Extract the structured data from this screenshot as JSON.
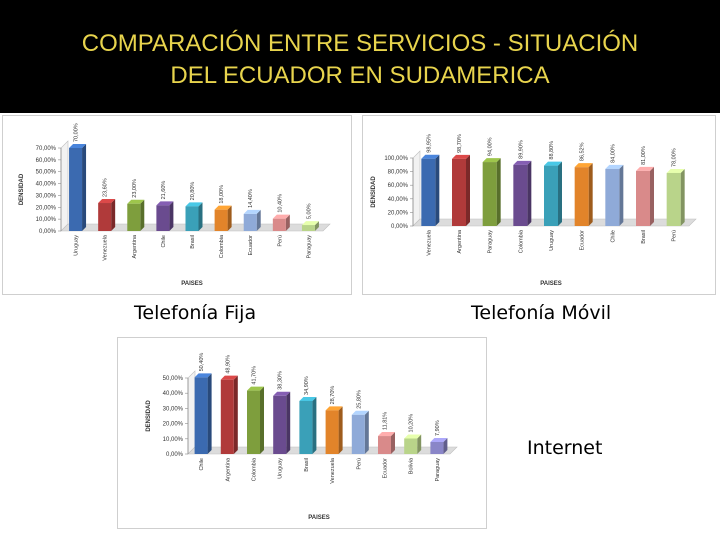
{
  "slide": {
    "title_line1": "COMPARACIÓN ENTRE SERVICIOS - SITUACIÓN",
    "title_line2": "DEL ECUADOR EN SUDAMERICA",
    "title_color": "#e8d44d"
  },
  "captions": {
    "fija": "Telefonía Fija",
    "movil": "Telefonía Móvil",
    "internet": "Internet"
  },
  "chart_data": [
    {
      "type": "bar",
      "caption": "Telefonía Fija",
      "ylabel": "DENSIDAD",
      "xlabel": "PAISES",
      "ylim": [
        0,
        70
      ],
      "yticks": [
        "0,00%",
        "10,00%",
        "20,00%",
        "30,00%",
        "40,00%",
        "50,00%",
        "60,00%",
        "70,00%"
      ],
      "yticks_values": [
        0,
        10,
        20,
        30,
        40,
        50,
        60,
        70
      ],
      "categories": [
        "Uruguay",
        "Venezuela",
        "Argentina",
        "Chile",
        "Brasil",
        "Colombia",
        "Ecuador",
        "Perú",
        "Paraguay"
      ],
      "values": [
        70.0,
        23.6,
        23.0,
        21.6,
        20.8,
        18.0,
        14.4,
        10.4,
        5.0
      ],
      "value_labels": [
        "70,00%",
        "23,60%",
        "23,00%",
        "21,60%",
        "20,80%",
        "18,00%",
        "14,40%",
        "10,40%",
        "5,00%"
      ],
      "colors": [
        "#3b6ab0",
        "#b03a3a",
        "#7e9e3d",
        "#6a4b8f",
        "#3aa0b8",
        "#e2842a",
        "#8faad8",
        "#d98a8a",
        "#b9d48a"
      ],
      "grid": false
    },
    {
      "type": "bar",
      "caption": "Telefonía Móvil",
      "ylabel": "DENSIDAD",
      "xlabel": "PAISES",
      "ylim": [
        0,
        100
      ],
      "yticks": [
        "0,00%",
        "20,00%",
        "40,00%",
        "60,00%",
        "80,00%",
        "100,00%"
      ],
      "yticks_values": [
        0,
        20,
        40,
        60,
        80,
        100
      ],
      "categories": [
        "Venezuela",
        "Argentina",
        "Paraguay",
        "Colombia",
        "Uruguay",
        "Ecuador",
        "Chile",
        "Brasil",
        "Perú"
      ],
      "values": [
        98.95,
        98.7,
        94.0,
        89.9,
        88.8,
        86.52,
        84.0,
        81.0,
        78.0
      ],
      "value_labels": [
        "98,95%",
        "98,70%",
        "94,00%",
        "89,90%",
        "88,80%",
        "86,52%",
        "84,00%",
        "81,00%",
        "78,00%"
      ],
      "colors": [
        "#3b6ab0",
        "#b03a3a",
        "#7e9e3d",
        "#6a4b8f",
        "#3aa0b8",
        "#e2842a",
        "#8faad8",
        "#d98a8a",
        "#b9d48a"
      ],
      "grid": false
    },
    {
      "type": "bar",
      "caption": "Internet",
      "ylabel": "DENSIDAD",
      "xlabel": "PAISES",
      "ylim": [
        0,
        50
      ],
      "yticks": [
        "0,00%",
        "10,00%",
        "20,00%",
        "30,00%",
        "40,00%",
        "50,00%"
      ],
      "yticks_values": [
        0,
        10,
        20,
        30,
        40,
        50
      ],
      "categories": [
        "Chile",
        "Argentina",
        "Colombia",
        "Uruguay",
        "Brasil",
        "Venezuela",
        "Perú",
        "Ecuador",
        "Bolivia",
        "Paraguay"
      ],
      "values": [
        50.4,
        48.9,
        41.7,
        38.3,
        34.9,
        28.7,
        25.8,
        11.81,
        10.2,
        7.9
      ],
      "value_labels": [
        "50,40%",
        "48,90%",
        "41,70%",
        "38,30%",
        "34,90%",
        "28,70%",
        "25,80%",
        "11,81%",
        "10,20%",
        "7,90%"
      ],
      "colors": [
        "#3b6ab0",
        "#b03a3a",
        "#7e9e3d",
        "#6a4b8f",
        "#3aa0b8",
        "#e2842a",
        "#8faad8",
        "#d98a8a",
        "#b9d48a",
        "#8a86c8"
      ],
      "grid": false
    }
  ]
}
